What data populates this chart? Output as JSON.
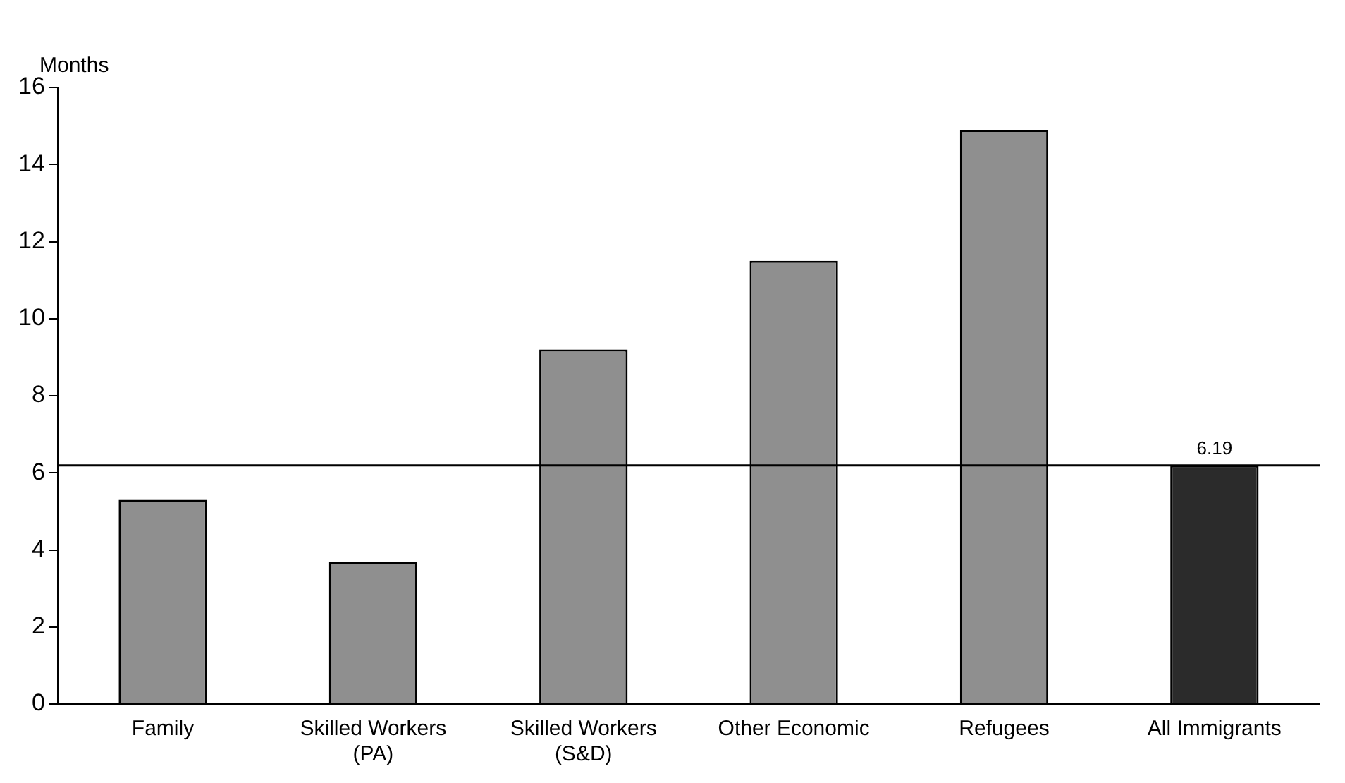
{
  "chart_data": {
    "type": "bar",
    "ylabel": "Months",
    "categories": [
      "Family",
      "Skilled Workers\n(PA)",
      "Skilled Workers\n(S&D)",
      "Other Economic",
      "Refugees",
      "All Immigrants"
    ],
    "values": [
      5.3,
      3.7,
      9.2,
      11.5,
      14.9,
      6.19
    ],
    "colors": [
      "#8f8f8f",
      "#8f8f8f",
      "#8f8f8f",
      "#8f8f8f",
      "#8f8f8f",
      "#2b2b2b"
    ],
    "value_labels": [
      null,
      null,
      null,
      null,
      null,
      "6.19"
    ],
    "ylim": [
      0,
      16
    ],
    "yticks": [
      0,
      2,
      4,
      6,
      8,
      10,
      12,
      14,
      16
    ],
    "ref_lines": [
      {
        "axis": "y",
        "value": 6.19,
        "color": "#000000"
      }
    ],
    "grid": false,
    "legend": false
  }
}
